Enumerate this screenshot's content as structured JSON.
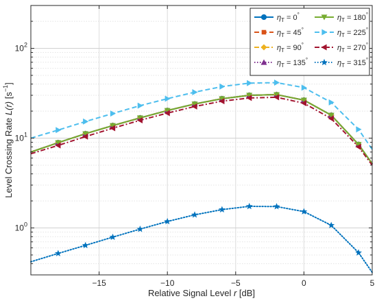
{
  "chart_data": {
    "type": "line",
    "xlabel": "Relative Signal Level r [dB]",
    "ylabel": "Level Crossing Rate L(r) [s^-1]",
    "xscale": "linear",
    "yscale": "log",
    "xlim": [
      -20,
      5
    ],
    "ylim": [
      0.3,
      300
    ],
    "xticks": [
      -15,
      -10,
      -5,
      0,
      5
    ],
    "xtick_labels": [
      "-15",
      "-10",
      "-5",
      "0",
      "5"
    ],
    "yticks": [
      1,
      10,
      100
    ],
    "ytick_labels": [
      "10^0",
      "10^1",
      "10^2"
    ],
    "grid": true,
    "legend": {
      "placement": "top-right",
      "columns": 2
    },
    "series": [
      {
        "name": "η_T = 0°",
        "color": "#0072BD",
        "linestyle": "solid",
        "marker": "circle",
        "curve": "A"
      },
      {
        "name": "η_T = 45°",
        "color": "#D95319",
        "linestyle": "dashed",
        "marker": "square",
        "curve": "A"
      },
      {
        "name": "η_T = 90°",
        "color": "#EDB120",
        "linestyle": "dashdot",
        "marker": "diamond",
        "curve": "A"
      },
      {
        "name": "η_T = 135°",
        "color": "#7E2F8E",
        "linestyle": "dotted",
        "marker": "triangle-up",
        "curve": "A"
      },
      {
        "name": "η_T = 180°",
        "color": "#77AC30",
        "linestyle": "solid",
        "marker": "triangle-down",
        "curve": "A"
      },
      {
        "name": "η_T = 225°",
        "color": "#4DBEEE",
        "linestyle": "dashed",
        "marker": "triangle-right",
        "curve": "B"
      },
      {
        "name": "η_T = 270°",
        "color": "#A2142F",
        "linestyle": "dashdot",
        "marker": "triangle-left",
        "curve": "C"
      },
      {
        "name": "η_T = 315°",
        "color": "#0072BD",
        "linestyle": "dotted",
        "marker": "star",
        "curve": "D"
      }
    ],
    "curves": {
      "A": {
        "x": [
          -20,
          -18,
          -16,
          -14,
          -12,
          -10,
          -8,
          -6,
          -4,
          -2,
          0,
          2,
          4,
          5
        ],
        "y": [
          7.0,
          8.9,
          11.2,
          13.8,
          16.8,
          20.3,
          24.0,
          27.5,
          30.0,
          30.5,
          26.5,
          18.0,
          8.5,
          5.2
        ]
      },
      "B": {
        "x": [
          -20,
          -18,
          -16,
          -14,
          -12,
          -10,
          -8,
          -6,
          -4,
          -2,
          0,
          2,
          4,
          5
        ],
        "y": [
          10.0,
          12.3,
          15.3,
          18.8,
          23.0,
          27.5,
          32.5,
          37.5,
          41.0,
          41.5,
          36.5,
          25.0,
          12.5,
          7.5
        ]
      },
      "C": {
        "x": [
          -20,
          -18,
          -16,
          -14,
          -12,
          -10,
          -8,
          -6,
          -4,
          -2,
          0,
          2,
          4,
          5
        ],
        "y": [
          6.7,
          8.3,
          10.4,
          12.9,
          15.8,
          19.0,
          22.5,
          25.8,
          28.0,
          28.5,
          24.5,
          16.5,
          8.0,
          5.0
        ]
      },
      "D": {
        "x": [
          -20,
          -18,
          -16,
          -14,
          -12,
          -10,
          -8,
          -6,
          -4,
          -2,
          0,
          2,
          4,
          5
        ],
        "y": [
          0.42,
          0.52,
          0.64,
          0.79,
          0.97,
          1.18,
          1.4,
          1.6,
          1.74,
          1.73,
          1.52,
          1.07,
          0.53,
          0.32
        ]
      }
    },
    "marker_x": [
      -18,
      -16,
      -14,
      -12,
      -10,
      -8,
      -6,
      -4,
      -2,
      0,
      2,
      4
    ]
  }
}
